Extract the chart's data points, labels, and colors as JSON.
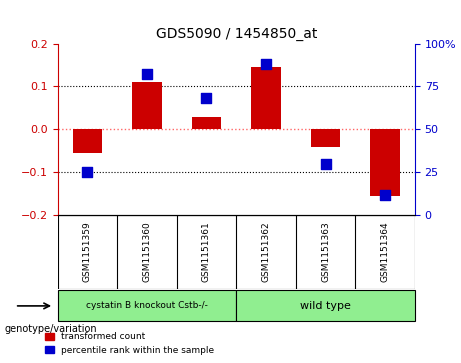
{
  "title": "GDS5090 / 1454850_at",
  "samples": [
    "GSM1151359",
    "GSM1151360",
    "GSM1151361",
    "GSM1151362",
    "GSM1151363",
    "GSM1151364"
  ],
  "red_values": [
    -0.055,
    0.11,
    0.03,
    0.145,
    -0.04,
    -0.155
  ],
  "blue_values": [
    25,
    82,
    68,
    88,
    30,
    12
  ],
  "ylim_left": [
    -0.2,
    0.2
  ],
  "ylim_right": [
    0,
    100
  ],
  "yticks_left": [
    -0.2,
    -0.1,
    0,
    0.1,
    0.2
  ],
  "yticks_right": [
    0,
    25,
    50,
    75,
    100
  ],
  "group1_label": "cystatin B knockout Cstb-/-",
  "group2_label": "wild type",
  "group1_indices": [
    0,
    1,
    2
  ],
  "group2_indices": [
    3,
    4,
    5
  ],
  "group1_color": "#90EE90",
  "group2_color": "#90EE90",
  "bar_color": "#cc0000",
  "dot_color": "#0000cc",
  "legend_label_red": "transformed count",
  "legend_label_blue": "percentile rank within the sample",
  "genotype_label": "genotype/variation",
  "bg_color": "#ffffff",
  "plot_bg": "#ffffff",
  "zero_line_color": "#ff6666",
  "dotted_line_color": "#000000",
  "right_axis_color": "#0000cc",
  "left_axis_color": "#cc0000"
}
